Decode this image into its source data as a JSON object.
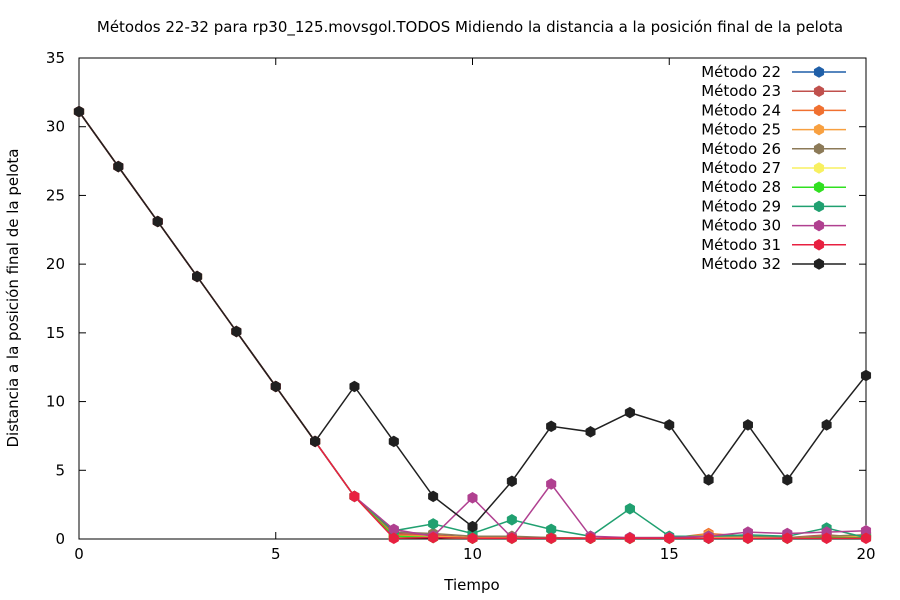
{
  "chart_data": {
    "type": "line",
    "title": "Métodos 22-32 para rp30_125.movsgol.TODOS Midiendo la distancia a la posición final de la pelota",
    "xlabel": "Tiempo",
    "ylabel": "Distancia a la posición final de la pelota",
    "xlim": [
      0,
      20
    ],
    "ylim": [
      0,
      35
    ],
    "xticks": [
      0,
      5,
      10,
      15,
      20
    ],
    "yticks": [
      0,
      5,
      10,
      15,
      20,
      25,
      30,
      35
    ],
    "grid": false,
    "legend_position": "top-right",
    "x": [
      0,
      1,
      2,
      3,
      4,
      5,
      6,
      7,
      8,
      9,
      10,
      11,
      12,
      13,
      14,
      15,
      16,
      17,
      18,
      19,
      20
    ],
    "series": [
      {
        "name": "Método 22",
        "color": "#1f5fa8",
        "values": [
          31.1,
          27.1,
          23.1,
          19.1,
          15.1,
          11.1,
          7.1,
          3.1,
          0.3,
          0.2,
          0.1,
          0.1,
          0.1,
          0.05,
          0.05,
          0.05,
          0.05,
          0.1,
          0.1,
          0.1,
          0.2
        ]
      },
      {
        "name": "Método 23",
        "color": "#c0504d",
        "values": [
          31.1,
          27.1,
          23.1,
          19.1,
          15.1,
          11.1,
          7.1,
          3.1,
          0.4,
          0.3,
          0.1,
          0.1,
          0.1,
          0.05,
          0.05,
          0.05,
          0.1,
          0.1,
          0.1,
          0.3,
          0.1
        ]
      },
      {
        "name": "Método 24",
        "color": "#f07030",
        "values": [
          31.1,
          27.1,
          23.1,
          19.1,
          15.1,
          11.1,
          7.1,
          3.1,
          0.3,
          0.2,
          0.1,
          0.1,
          0.1,
          0.05,
          0.05,
          0.05,
          0.4,
          0.2,
          0.1,
          0.2,
          0.3
        ]
      },
      {
        "name": "Método 25",
        "color": "#f8a040",
        "values": [
          31.1,
          27.1,
          23.1,
          19.1,
          15.1,
          11.1,
          7.1,
          3.1,
          0.2,
          0.2,
          0.1,
          0.1,
          0.1,
          0.05,
          0.05,
          0.1,
          0.3,
          0.2,
          0.1,
          0.2,
          0.2
        ]
      },
      {
        "name": "Método 26",
        "color": "#8c7a58",
        "values": [
          31.1,
          27.1,
          23.1,
          19.1,
          15.1,
          11.1,
          7.1,
          3.1,
          0.5,
          0.4,
          0.2,
          0.2,
          0.1,
          0.05,
          0.1,
          0.1,
          0.2,
          0.2,
          0.1,
          0.2,
          0.3
        ]
      },
      {
        "name": "Método 27",
        "color": "#f8f060",
        "values": [
          31.1,
          27.1,
          23.1,
          19.1,
          15.1,
          11.1,
          7.1,
          3.1,
          0.1,
          0.1,
          0.05,
          0.05,
          0.05,
          0.05,
          0.05,
          0.05,
          0.1,
          0.1,
          0.05,
          0.1,
          0.1
        ]
      },
      {
        "name": "Método 28",
        "color": "#30e020",
        "values": [
          31.1,
          27.1,
          23.1,
          19.1,
          15.1,
          11.1,
          7.1,
          3.1,
          0.2,
          0.1,
          0.05,
          0.05,
          0.05,
          0.05,
          0.05,
          0.05,
          0.05,
          0.05,
          0.05,
          0.1,
          0.1
        ]
      },
      {
        "name": "Método 29",
        "color": "#20a070",
        "values": [
          31.1,
          27.1,
          23.1,
          19.1,
          15.1,
          11.1,
          7.1,
          3.1,
          0.6,
          1.1,
          0.4,
          1.4,
          0.7,
          0.2,
          2.2,
          0.2,
          0.2,
          0.3,
          0.2,
          0.8,
          0.1
        ]
      },
      {
        "name": "Método 30",
        "color": "#b04090",
        "values": [
          31.1,
          27.1,
          23.1,
          19.1,
          15.1,
          11.1,
          7.1,
          3.1,
          0.7,
          0.2,
          3.0,
          0.1,
          4.0,
          0.2,
          0.1,
          0.1,
          0.2,
          0.5,
          0.4,
          0.5,
          0.6
        ]
      },
      {
        "name": "Método 31",
        "color": "#e82040",
        "values": [
          31.1,
          27.1,
          23.1,
          19.1,
          15.1,
          11.1,
          7.1,
          3.1,
          0.05,
          0.1,
          0.05,
          0.05,
          0.05,
          0.05,
          0.05,
          0.05,
          0.05,
          0.05,
          0.05,
          0.05,
          0.05
        ]
      },
      {
        "name": "Método 32",
        "color": "#202020",
        "values": [
          31.1,
          27.1,
          23.1,
          19.1,
          15.1,
          11.1,
          7.1,
          11.1,
          7.1,
          3.1,
          0.9,
          4.2,
          8.2,
          7.8,
          9.2,
          8.3,
          4.3,
          8.3,
          4.3,
          8.3,
          11.9
        ]
      }
    ]
  }
}
